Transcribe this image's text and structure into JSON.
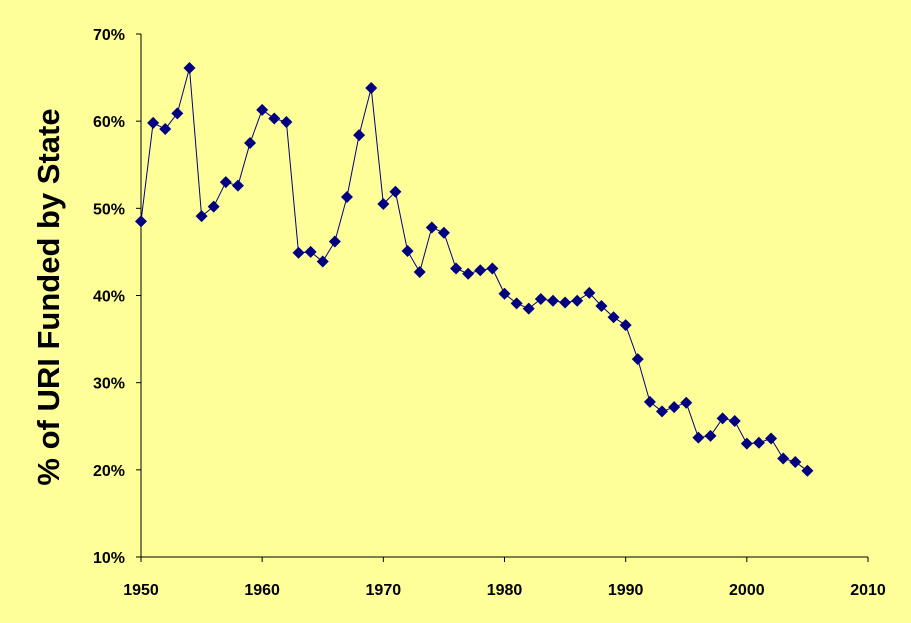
{
  "chart_data": {
    "type": "line",
    "title": "",
    "xlabel": "",
    "ylabel": "% of URI Funded by State",
    "xlim": [
      1950,
      2010
    ],
    "ylim": [
      10,
      70
    ],
    "x_ticks": [
      1950,
      1960,
      1970,
      1980,
      1990,
      2000,
      2010
    ],
    "y_ticks": [
      10,
      20,
      30,
      40,
      50,
      60,
      70
    ],
    "x_tick_labels": [
      "1950",
      "1960",
      "1970",
      "1980",
      "1990",
      "2000",
      "2010"
    ],
    "y_tick_labels": [
      "10%",
      "20%",
      "30%",
      "40%",
      "50%",
      "60%",
      "70%"
    ],
    "grid": false,
    "legend": "none",
    "marker": "diamond",
    "series": [
      {
        "color": "#000080",
        "x": [
          1950,
          1951,
          1952,
          1953,
          1954,
          1955,
          1956,
          1957,
          1958,
          1959,
          1960,
          1961,
          1962,
          1963,
          1964,
          1965,
          1966,
          1967,
          1968,
          1969,
          1970,
          1971,
          1972,
          1973,
          1974,
          1975,
          1976,
          1977,
          1978,
          1979,
          1980,
          1981,
          1982,
          1983,
          1984,
          1985,
          1986,
          1987,
          1988,
          1989,
          1990,
          1991,
          1992,
          1993,
          1994,
          1995,
          1996,
          1997,
          1998,
          1999,
          2000,
          2001,
          2002,
          2003,
          2004,
          2005
        ],
        "y": [
          48.5,
          59.8,
          59.1,
          60.9,
          66.1,
          49.1,
          50.2,
          53.0,
          52.6,
          57.5,
          61.3,
          60.3,
          59.9,
          44.9,
          45.0,
          43.9,
          46.2,
          51.3,
          58.4,
          63.8,
          50.5,
          51.9,
          45.1,
          42.7,
          47.8,
          47.2,
          43.1,
          42.5,
          42.9,
          43.1,
          40.2,
          39.1,
          38.5,
          39.6,
          39.4,
          39.2,
          39.4,
          40.3,
          38.8,
          37.5,
          36.6,
          32.7,
          27.8,
          26.7,
          27.2,
          27.7,
          23.7,
          23.9,
          25.9,
          25.6,
          23.0,
          23.1,
          23.6,
          21.3,
          20.9,
          19.9
        ]
      }
    ]
  }
}
